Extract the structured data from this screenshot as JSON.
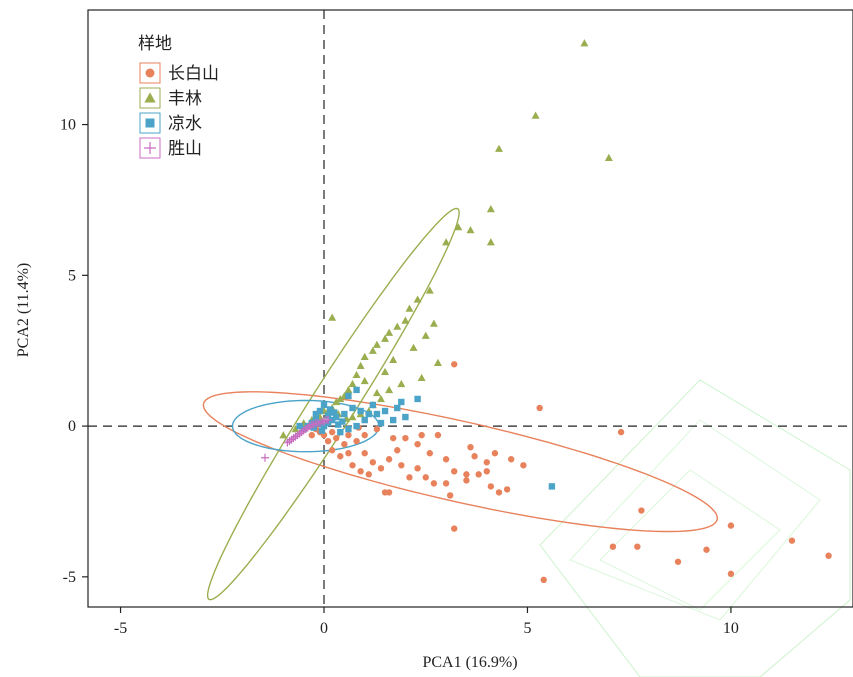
{
  "chart_data": {
    "type": "scatter",
    "xlabel": "PCA1 (16.9%)",
    "ylabel": "PCA2 (11.4%)",
    "xlim": [
      -5.8,
      13.0
    ],
    "ylim": [
      -6.0,
      13.8
    ],
    "xticks": [
      -5,
      0,
      5,
      10
    ],
    "yticks": [
      -5,
      0,
      5,
      10
    ],
    "tick_labels_x": [
      "-5",
      "0",
      "5",
      "10"
    ],
    "tick_labels_y": [
      "-5",
      "0",
      "5",
      "10"
    ],
    "grid": false,
    "reference_lines": {
      "x": 0,
      "y": 0,
      "style": "dashed"
    },
    "legend": {
      "title": "样地",
      "position": "top-left"
    },
    "series": [
      {
        "name": "长白山",
        "marker": "circle",
        "color": "#E8825C",
        "points": [
          [
            3.2,
            2.05
          ],
          [
            5.3,
            0.6
          ],
          [
            7.3,
            -0.2
          ],
          [
            12.4,
            -4.3
          ],
          [
            11.5,
            -3.8
          ],
          [
            10.0,
            -3.3
          ],
          [
            9.4,
            -4.1
          ],
          [
            10.0,
            -4.9
          ],
          [
            8.7,
            -4.5
          ],
          [
            7.7,
            -4.0
          ],
          [
            7.1,
            -4.0
          ],
          [
            7.8,
            -2.8
          ],
          [
            5.4,
            -5.1
          ],
          [
            3.2,
            -3.4
          ],
          [
            4.9,
            -1.3
          ],
          [
            4.6,
            -1.1
          ],
          [
            4.2,
            -0.9
          ],
          [
            4.0,
            -1.2
          ],
          [
            3.7,
            -1.0
          ],
          [
            3.5,
            -1.6
          ],
          [
            3.2,
            -1.5
          ],
          [
            3.0,
            -1.1
          ],
          [
            2.6,
            -0.9
          ],
          [
            2.3,
            -0.6
          ],
          [
            2.0,
            -0.4
          ],
          [
            1.8,
            -0.8
          ],
          [
            1.6,
            -1.1
          ],
          [
            1.4,
            -1.4
          ],
          [
            1.2,
            -1.2
          ],
          [
            1.0,
            -0.9
          ],
          [
            0.8,
            -0.5
          ],
          [
            0.6,
            -0.3
          ],
          [
            0.5,
            -0.6
          ],
          [
            0.4,
            -1.0
          ],
          [
            0.3,
            -0.4
          ],
          [
            0.2,
            -0.2
          ],
          [
            0.1,
            -0.5
          ],
          [
            0.0,
            -0.3
          ],
          [
            -0.1,
            -0.2
          ],
          [
            -0.2,
            -0.1
          ],
          [
            -0.3,
            -0.3
          ],
          [
            0.7,
            -1.3
          ],
          [
            0.9,
            -1.5
          ],
          [
            1.1,
            -1.6
          ],
          [
            1.5,
            -2.2
          ],
          [
            1.6,
            -2.2
          ],
          [
            2.1,
            -1.7
          ],
          [
            2.3,
            -1.4
          ],
          [
            2.5,
            -1.7
          ],
          [
            2.7,
            -1.9
          ],
          [
            3.0,
            -1.9
          ],
          [
            3.1,
            -2.3
          ],
          [
            3.5,
            -1.8
          ],
          [
            3.8,
            -1.6
          ],
          [
            4.1,
            -2.0
          ],
          [
            4.3,
            -2.2
          ],
          [
            4.5,
            -2.1
          ],
          [
            1.3,
            -0.1
          ],
          [
            1.7,
            -0.4
          ],
          [
            2.4,
            -0.3
          ],
          [
            2.8,
            -0.3
          ],
          [
            4.0,
            -1.5
          ],
          [
            3.6,
            -0.7
          ],
          [
            1.9,
            -1.3
          ],
          [
            0.6,
            -0.9
          ],
          [
            0.2,
            -0.8
          ],
          [
            1.0,
            -0.3
          ],
          [
            0.85,
            -0.05
          ]
        ]
      },
      {
        "name": "丰林",
        "marker": "triangle",
        "color": "#9AAE50",
        "points": [
          [
            6.4,
            12.7
          ],
          [
            5.2,
            10.3
          ],
          [
            7.0,
            8.9
          ],
          [
            4.3,
            9.2
          ],
          [
            4.1,
            7.2
          ],
          [
            3.3,
            6.6
          ],
          [
            3.6,
            6.5
          ],
          [
            4.1,
            6.1
          ],
          [
            3.0,
            6.1
          ],
          [
            2.6,
            4.5
          ],
          [
            2.3,
            4.2
          ],
          [
            2.1,
            3.9
          ],
          [
            2.0,
            3.5
          ],
          [
            1.8,
            3.3
          ],
          [
            1.6,
            3.1
          ],
          [
            1.5,
            2.9
          ],
          [
            1.3,
            2.7
          ],
          [
            1.2,
            2.5
          ],
          [
            1.0,
            2.3
          ],
          [
            0.9,
            2.0
          ],
          [
            0.8,
            1.7
          ],
          [
            0.7,
            1.4
          ],
          [
            0.6,
            1.2
          ],
          [
            0.5,
            1.0
          ],
          [
            0.4,
            0.9
          ],
          [
            0.3,
            0.8
          ],
          [
            0.2,
            0.6
          ],
          [
            0.1,
            0.5
          ],
          [
            0.0,
            0.5
          ],
          [
            0.2,
            3.6
          ],
          [
            1.3,
            1.1
          ],
          [
            2.8,
            2.1
          ],
          [
            2.4,
            1.6
          ],
          [
            1.9,
            1.4
          ],
          [
            1.6,
            1.2
          ],
          [
            1.4,
            0.9
          ],
          [
            1.2,
            0.7
          ],
          [
            1.1,
            0.5
          ],
          [
            0.9,
            0.4
          ],
          [
            0.7,
            0.3
          ],
          [
            -1.0,
            -0.3
          ],
          [
            -0.7,
            -0.1
          ],
          [
            -0.5,
            0.1
          ],
          [
            -0.3,
            0.2
          ],
          [
            -0.1,
            0.3
          ],
          [
            0.55,
            0.25
          ],
          [
            0.35,
            0.4
          ],
          [
            1.0,
            1.5
          ],
          [
            1.5,
            1.8
          ],
          [
            1.7,
            2.2
          ],
          [
            2.2,
            2.6
          ],
          [
            2.5,
            3.0
          ],
          [
            2.7,
            3.4
          ]
        ]
      },
      {
        "name": "凉水",
        "marker": "square",
        "color": "#4BA3C8",
        "points": [
          [
            5.6,
            -2.0
          ],
          [
            2.3,
            0.9
          ],
          [
            1.9,
            0.8
          ],
          [
            1.8,
            0.6
          ],
          [
            1.5,
            0.5
          ],
          [
            1.3,
            0.4
          ],
          [
            1.1,
            0.4
          ],
          [
            0.9,
            0.5
          ],
          [
            0.7,
            0.6
          ],
          [
            0.5,
            0.4
          ],
          [
            0.3,
            0.3
          ],
          [
            0.2,
            0.2
          ],
          [
            0.1,
            0.1
          ],
          [
            0.0,
            0.0
          ],
          [
            -0.1,
            0.1
          ],
          [
            -0.2,
            0.2
          ],
          [
            -0.3,
            0.1
          ],
          [
            -0.4,
            0.0
          ],
          [
            -0.5,
            -0.1
          ],
          [
            -0.6,
            0.0
          ],
          [
            1.2,
            0.7
          ],
          [
            1.0,
            0.2
          ],
          [
            0.8,
            0.0
          ],
          [
            0.6,
            -0.1
          ],
          [
            0.4,
            -0.2
          ],
          [
            0.25,
            0.45
          ],
          [
            0.15,
            0.55
          ],
          [
            0.0,
            0.7
          ],
          [
            -0.1,
            0.5
          ],
          [
            -0.2,
            0.4
          ],
          [
            0.6,
            1.0
          ],
          [
            0.8,
            1.2
          ],
          [
            1.4,
            0.1
          ],
          [
            1.7,
            0.2
          ],
          [
            2.0,
            0.3
          ],
          [
            0.45,
            0.15
          ],
          [
            0.35,
            0.05
          ],
          [
            -0.05,
            -0.15
          ],
          [
            -0.25,
            -0.05
          ],
          [
            0.1,
            0.35
          ]
        ]
      },
      {
        "name": "胜山",
        "marker": "plus",
        "color": "#C86CC0",
        "points": [
          [
            -1.45,
            -1.05
          ],
          [
            -0.9,
            -0.55
          ],
          [
            -0.85,
            -0.5
          ],
          [
            -0.8,
            -0.45
          ],
          [
            -0.75,
            -0.4
          ],
          [
            -0.7,
            -0.35
          ],
          [
            -0.65,
            -0.3
          ],
          [
            -0.6,
            -0.25
          ],
          [
            -0.55,
            -0.2
          ],
          [
            -0.5,
            -0.15
          ],
          [
            -0.45,
            -0.1
          ],
          [
            -0.4,
            -0.05
          ],
          [
            -0.35,
            0.0
          ],
          [
            -0.3,
            0.05
          ],
          [
            -0.25,
            0.05
          ],
          [
            -0.2,
            0.1
          ],
          [
            -0.15,
            0.1
          ],
          [
            -0.1,
            0.1
          ],
          [
            -0.05,
            0.15
          ],
          [
            0.0,
            0.15
          ],
          [
            0.05,
            0.2
          ],
          [
            0.1,
            0.2
          ]
        ]
      }
    ],
    "ellipses": [
      {
        "series": "长白山",
        "color": "#E8825C",
        "cx": 3.35,
        "cy": -1.18,
        "rx": 6.47,
        "ry": 1.33,
        "angle_deg": -12.7
      },
      {
        "series": "丰林",
        "color": "#9AAE50",
        "cx": 0.23,
        "cy": 0.73,
        "rx": 5.69,
        "ry": 0.73,
        "angle_deg": 57.5
      },
      {
        "series": "凉水",
        "color": "#4BA3C8",
        "cx": -0.45,
        "cy": 0.0,
        "rx": 1.8,
        "ry": 0.85,
        "angle_deg": 0
      }
    ]
  }
}
